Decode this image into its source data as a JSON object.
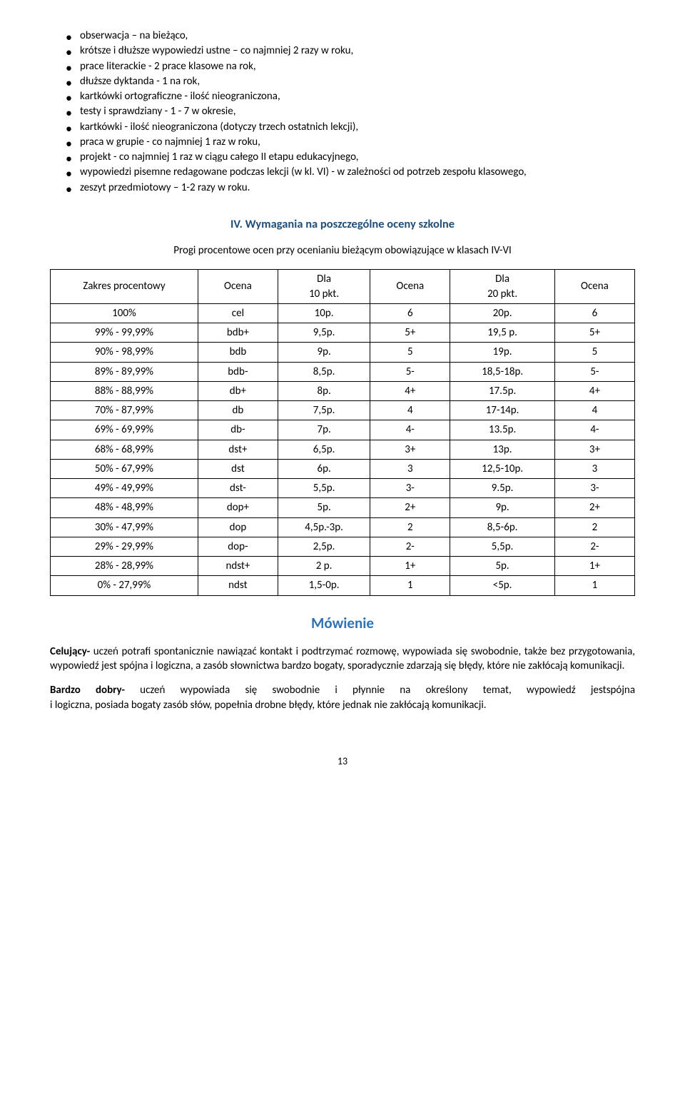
{
  "bullets": [
    "obserwacja – na bieżąco,",
    "krótsze i dłuższe wypowiedzi ustne – co najmniej 2 razy w roku,",
    "prace literackie - 2 prace klasowe na rok,",
    "dłuższe dyktanda - 1 na rok,",
    "kartkówki ortograficzne - ilość nieograniczona,",
    "testy i sprawdziany - 1 - 7 w okresie,",
    "kartkówki - ilość nieograniczona (dotyczy trzech ostatnich lekcji),",
    "praca w grupie - co najmniej 1 raz w roku,",
    "projekt - co najmniej 1 raz w ciągu całego II etapu edukacyjnego,",
    "wypowiedzi pisemne redagowane podczas lekcji (w kl. VI) - w zależności od potrzeb zespołu klasowego,",
    "zeszyt przedmiotowy – 1-2  razy w roku."
  ],
  "heading_main": "IV. Wymagania na poszczególne oceny szkolne",
  "intro_line": "Progi procentowe ocen przy ocenianiu bieżącym obowiązujące w klasach IV-VI",
  "table": {
    "headers": [
      "Zakres procentowy",
      "Ocena",
      "Dla\n10 pkt.",
      "Ocena",
      "Dla\n20 pkt.",
      "Ocena"
    ],
    "rows": [
      [
        "100%",
        "cel",
        "10p.",
        "6",
        "20p.",
        "6"
      ],
      [
        "99% - 99,99%",
        "bdb+",
        "9,5p.",
        "5+",
        "19,5 p.",
        "5+"
      ],
      [
        "90% - 98,99%",
        "bdb",
        "9p.",
        "5",
        "19p.",
        "5"
      ],
      [
        "89% - 89,99%",
        "bdb-",
        "8,5p.",
        "5-",
        "18,5-18p.",
        "5-"
      ],
      [
        "88% - 88,99%",
        "db+",
        "8p.",
        "4+",
        "17.5p.",
        "4+"
      ],
      [
        "70% - 87,99%",
        "db",
        "7,5p.",
        "4",
        "17-14p.",
        "4"
      ],
      [
        "69% - 69,99%",
        "db-",
        "7p.",
        "4-",
        "13.5p.",
        "4-"
      ],
      [
        "68% - 68,99%",
        "dst+",
        "6,5p.",
        "3+",
        "13p.",
        "3+"
      ],
      [
        "50% - 67,99%",
        "dst",
        "6p.",
        "3",
        "12,5-10p.",
        "3"
      ],
      [
        "49% - 49,99%",
        "dst-",
        "5,5p.",
        "3-",
        "9.5p.",
        "3-"
      ],
      [
        "48% - 48,99%",
        "dop+",
        "5p.",
        "2+",
        "9p.",
        "2+"
      ],
      [
        "30% - 47,99%",
        "dop",
        "4,5p.-3p.",
        "2",
        "8,5-6p.",
        "2"
      ],
      [
        "29% - 29,99%",
        "dop-",
        "2,5p.",
        "2-",
        "5,5p.",
        "2-"
      ],
      [
        "28% - 28,99%",
        "ndst+",
        "2 p.",
        "1+",
        "5p.",
        "1+"
      ],
      [
        "0% - 27,99%",
        "ndst",
        "1,5-0p.",
        "1",
        "<5p.",
        "1"
      ]
    ],
    "col_widths": [
      "24%",
      "13%",
      "15%",
      "13%",
      "17%",
      "13%"
    ]
  },
  "subheading": "Mówienie",
  "para1_bold": "Celujący-",
  "para1_rest": " uczeń potrafi spontanicznie nawiązać kontakt i podtrzymać rozmowę, wypowiada się swobodnie, także bez przygotowania, wypowiedź jest  spójna i logiczna, a zasób słownictwa bardzo bogaty, sporadycznie  zdarzają się błędy, które nie zakłócają komunikacji.",
  "para2_bold": "Bardzo dobry-",
  "para2_mid": " uczeń wypowiada się swobodnie i płynnie na określony temat, wypowiedź jest",
  "para2_right": "spójna",
  "para2_line2": "i logiczna, posiada bogaty zasób słów, popełnia drobne błędy, które jednak nie zakłócają komunikacji.",
  "page_number": "13"
}
